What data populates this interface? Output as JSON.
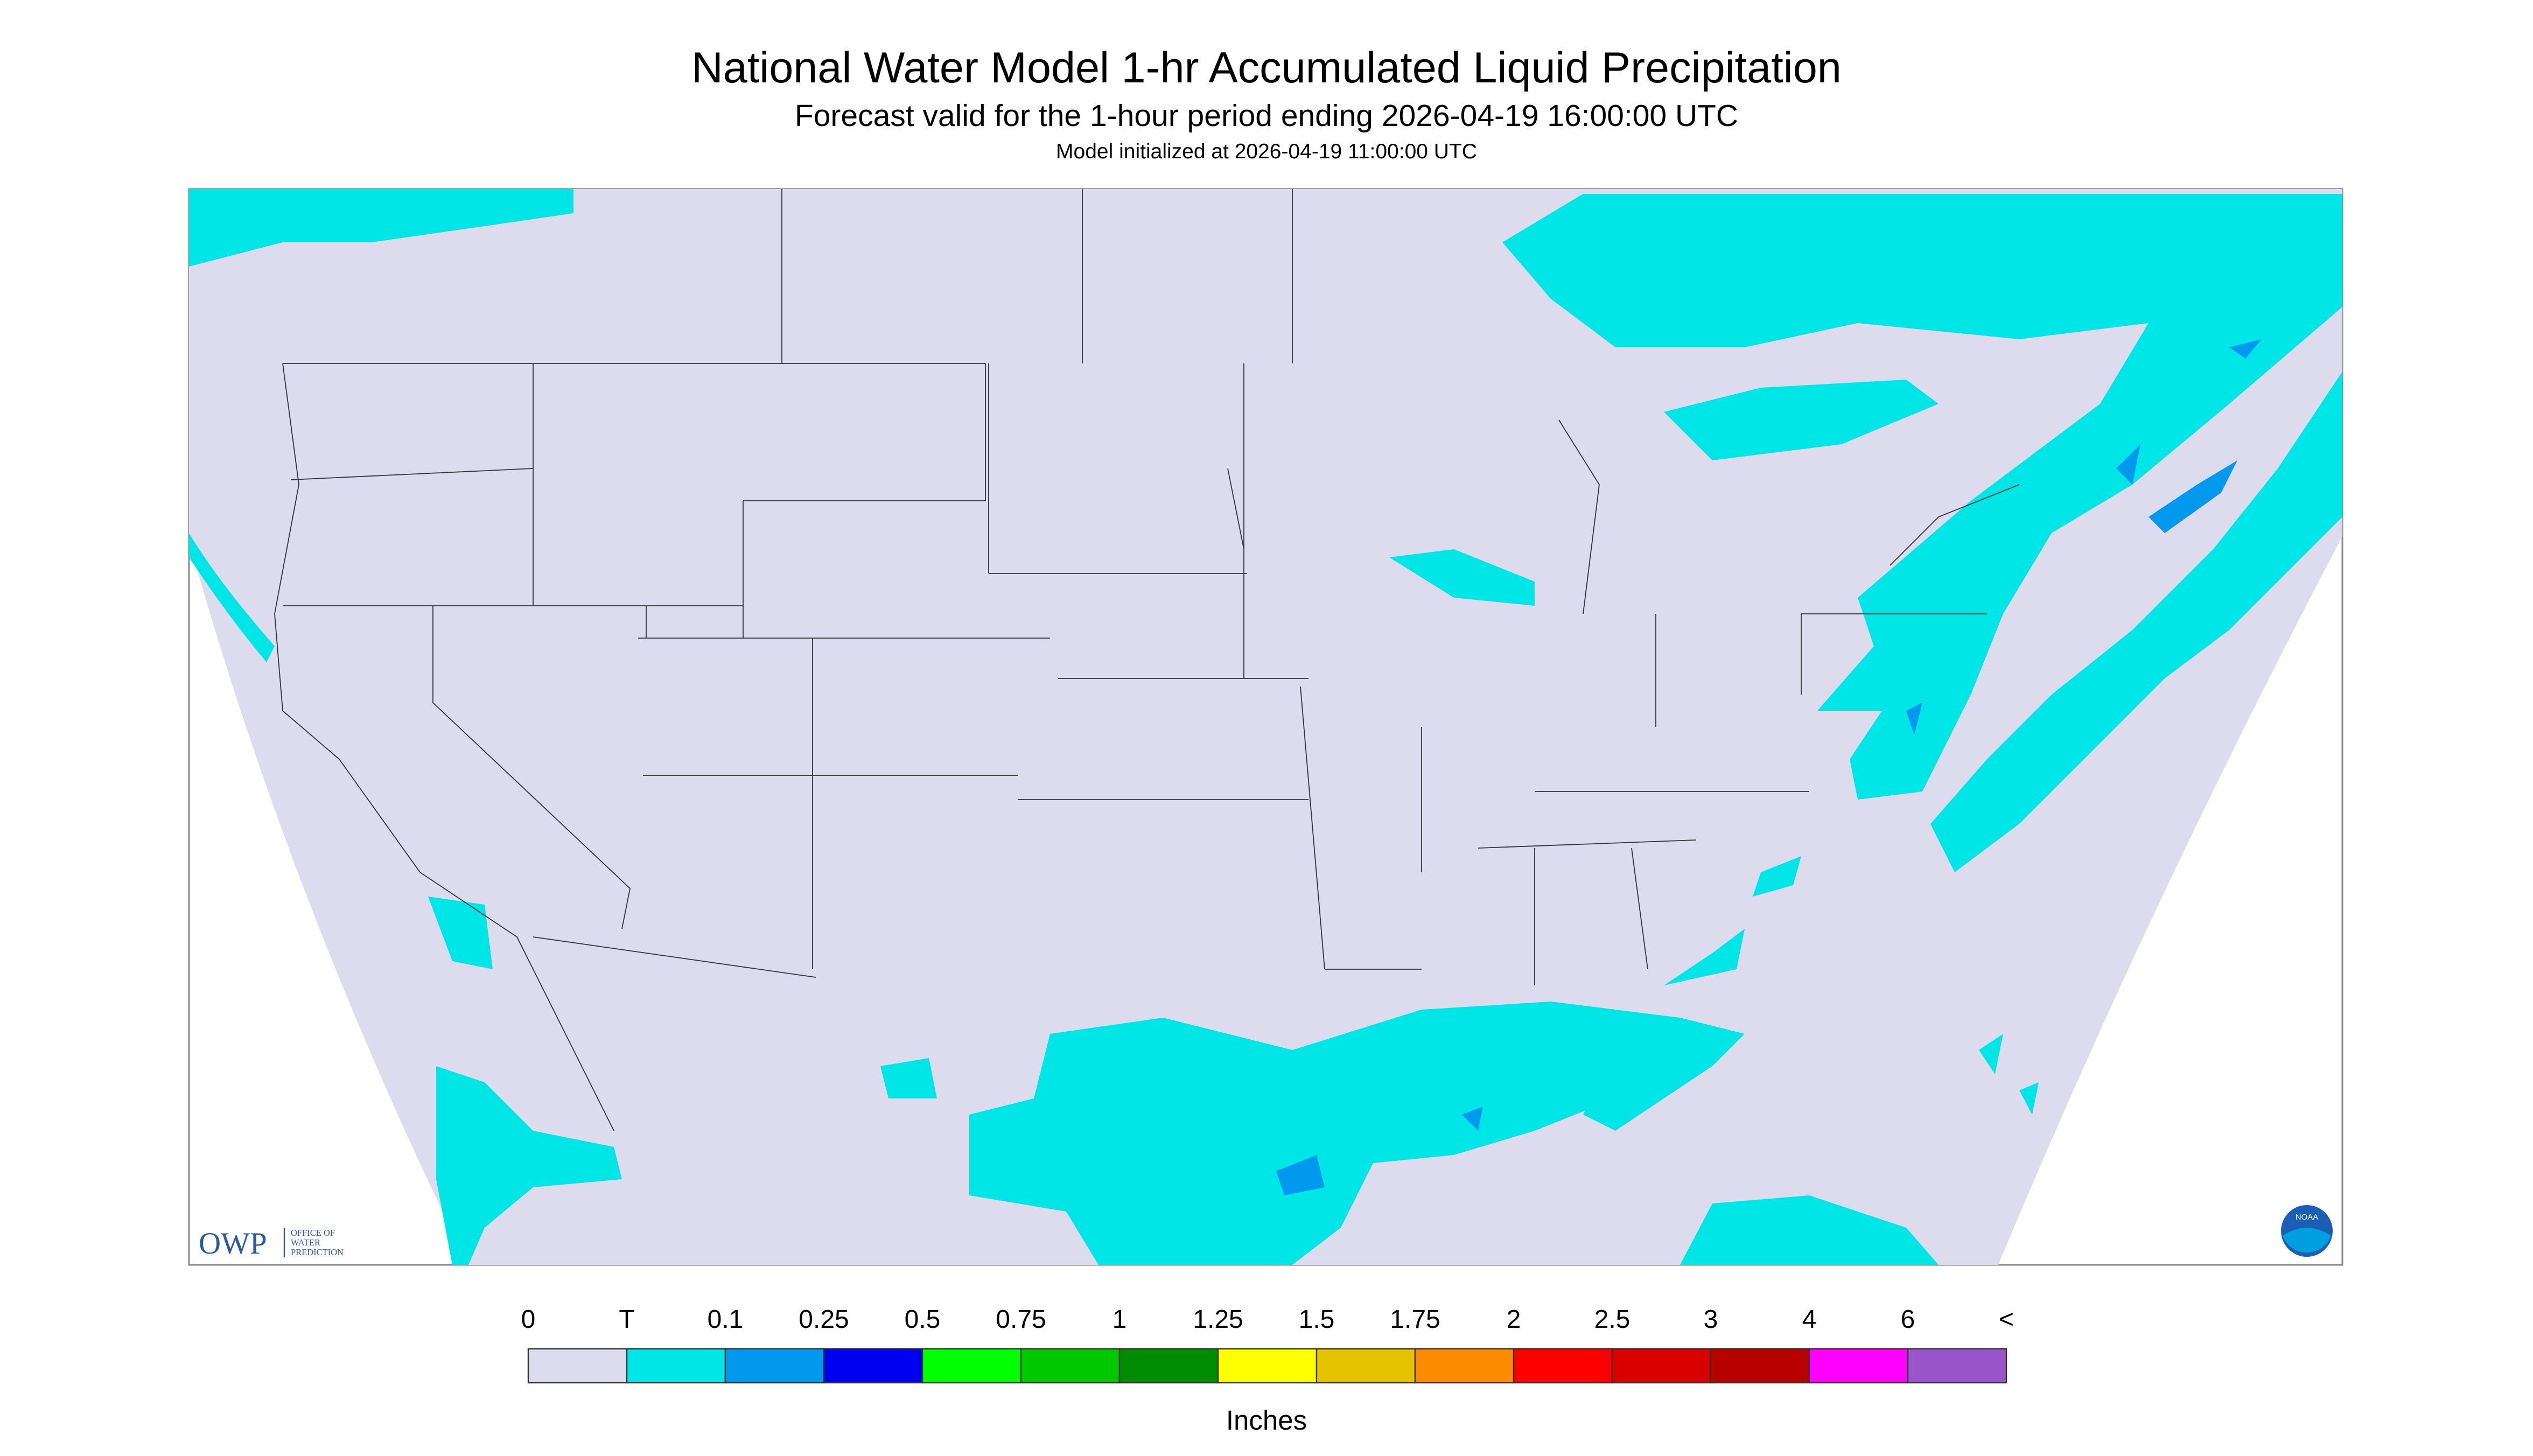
{
  "header": {
    "title": "National Water Model 1-hr Accumulated Liquid Precipitation",
    "subtitle": "Forecast valid for the 1-hour period ending 2026-04-19 16:00:00 UTC",
    "note": "Model initialized at 2026-04-19 11:00:00 UTC"
  },
  "legend": {
    "labels": [
      "0",
      "T",
      "0.1",
      "0.25",
      "0.5",
      "0.75",
      "1",
      "1.25",
      "1.5",
      "1.75",
      "2",
      "2.5",
      "3",
      "4",
      "6",
      "<"
    ],
    "colors": [
      "#dcdcee",
      "#00e5e5",
      "#0099ee",
      "#0000f0",
      "#00ff00",
      "#00c800",
      "#008c00",
      "#ffff00",
      "#e6c300",
      "#ff8c00",
      "#ff0000",
      "#d90000",
      "#b90000",
      "#ff00ff",
      "#9955c9"
    ],
    "unit": "Inches"
  },
  "logos": {
    "owp": "OWP",
    "owp_name": [
      "OFFICE OF",
      "WATER",
      "PREDICTION"
    ],
    "noaa": "NOAA"
  }
}
